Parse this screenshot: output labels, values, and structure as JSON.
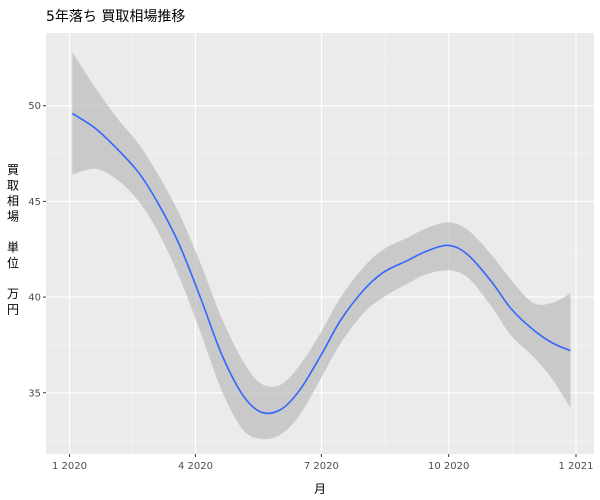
{
  "chart_data": {
    "type": "line",
    "title": "5年落ち 買取相場推移",
    "xlabel": "月",
    "ylabel_chars": [
      "買",
      "取",
      "相",
      "場",
      "",
      "単",
      "位",
      "",
      "万",
      "円"
    ],
    "x_ticks": [
      {
        "label": "1 2020",
        "value": "2020-01"
      },
      {
        "label": "4 2020",
        "value": "2020-04"
      },
      {
        "label": "7 2020",
        "value": "2020-07"
      },
      {
        "label": "10 2020",
        "value": "2020-10"
      },
      {
        "label": "1 2021",
        "value": "2021-01"
      }
    ],
    "y_ticks": [
      35,
      40,
      45,
      50
    ],
    "ylim": [
      31.8,
      53.8
    ],
    "xlim": [
      "2019-12-15",
      "2021-01-14"
    ],
    "grid": true,
    "series": [
      {
        "color": "#3366FF",
        "band_color": "#BEBEBE",
        "points": [
          {
            "x": "2020-01-03",
            "y": 49.6,
            "lo": 46.4,
            "hi": 52.8
          },
          {
            "x": "2020-01-20",
            "y": 48.8,
            "lo": 46.7,
            "hi": 50.9
          },
          {
            "x": "2020-02-05",
            "y": 47.7,
            "lo": 46.1,
            "hi": 49.3
          },
          {
            "x": "2020-02-20",
            "y": 46.5,
            "lo": 45.0,
            "hi": 48.0
          },
          {
            "x": "2020-03-05",
            "y": 44.9,
            "lo": 43.4,
            "hi": 46.4
          },
          {
            "x": "2020-03-20",
            "y": 42.8,
            "lo": 41.1,
            "hi": 44.4
          },
          {
            "x": "2020-04-05",
            "y": 39.9,
            "lo": 38.1,
            "hi": 41.7
          },
          {
            "x": "2020-04-20",
            "y": 37.0,
            "lo": 35.1,
            "hi": 38.9
          },
          {
            "x": "2020-05-05",
            "y": 34.9,
            "lo": 33.1,
            "hi": 36.7
          },
          {
            "x": "2020-05-18",
            "y": 34.0,
            "lo": 32.6,
            "hi": 35.5
          },
          {
            "x": "2020-06-01",
            "y": 34.1,
            "lo": 32.8,
            "hi": 35.4
          },
          {
            "x": "2020-06-15",
            "y": 35.1,
            "lo": 33.8,
            "hi": 36.4
          },
          {
            "x": "2020-07-01",
            "y": 37.0,
            "lo": 35.8,
            "hi": 38.2
          },
          {
            "x": "2020-07-15",
            "y": 38.8,
            "lo": 37.6,
            "hi": 40.0
          },
          {
            "x": "2020-08-01",
            "y": 40.4,
            "lo": 39.2,
            "hi": 41.6
          },
          {
            "x": "2020-08-15",
            "y": 41.3,
            "lo": 40.0,
            "hi": 42.5
          },
          {
            "x": "2020-09-01",
            "y": 41.9,
            "lo": 40.7,
            "hi": 43.1
          },
          {
            "x": "2020-09-15",
            "y": 42.4,
            "lo": 41.2,
            "hi": 43.6
          },
          {
            "x": "2020-10-01",
            "y": 42.7,
            "lo": 41.4,
            "hi": 43.9
          },
          {
            "x": "2020-10-15",
            "y": 42.2,
            "lo": 41.0,
            "hi": 43.5
          },
          {
            "x": "2020-11-01",
            "y": 40.8,
            "lo": 39.5,
            "hi": 42.2
          },
          {
            "x": "2020-11-15",
            "y": 39.4,
            "lo": 38.0,
            "hi": 40.9
          },
          {
            "x": "2020-12-01",
            "y": 38.3,
            "lo": 36.9,
            "hi": 39.7
          },
          {
            "x": "2020-12-15",
            "y": 37.6,
            "lo": 35.7,
            "hi": 39.7
          },
          {
            "x": "2020-12-28",
            "y": 37.2,
            "lo": 34.2,
            "hi": 40.2
          }
        ]
      }
    ]
  }
}
